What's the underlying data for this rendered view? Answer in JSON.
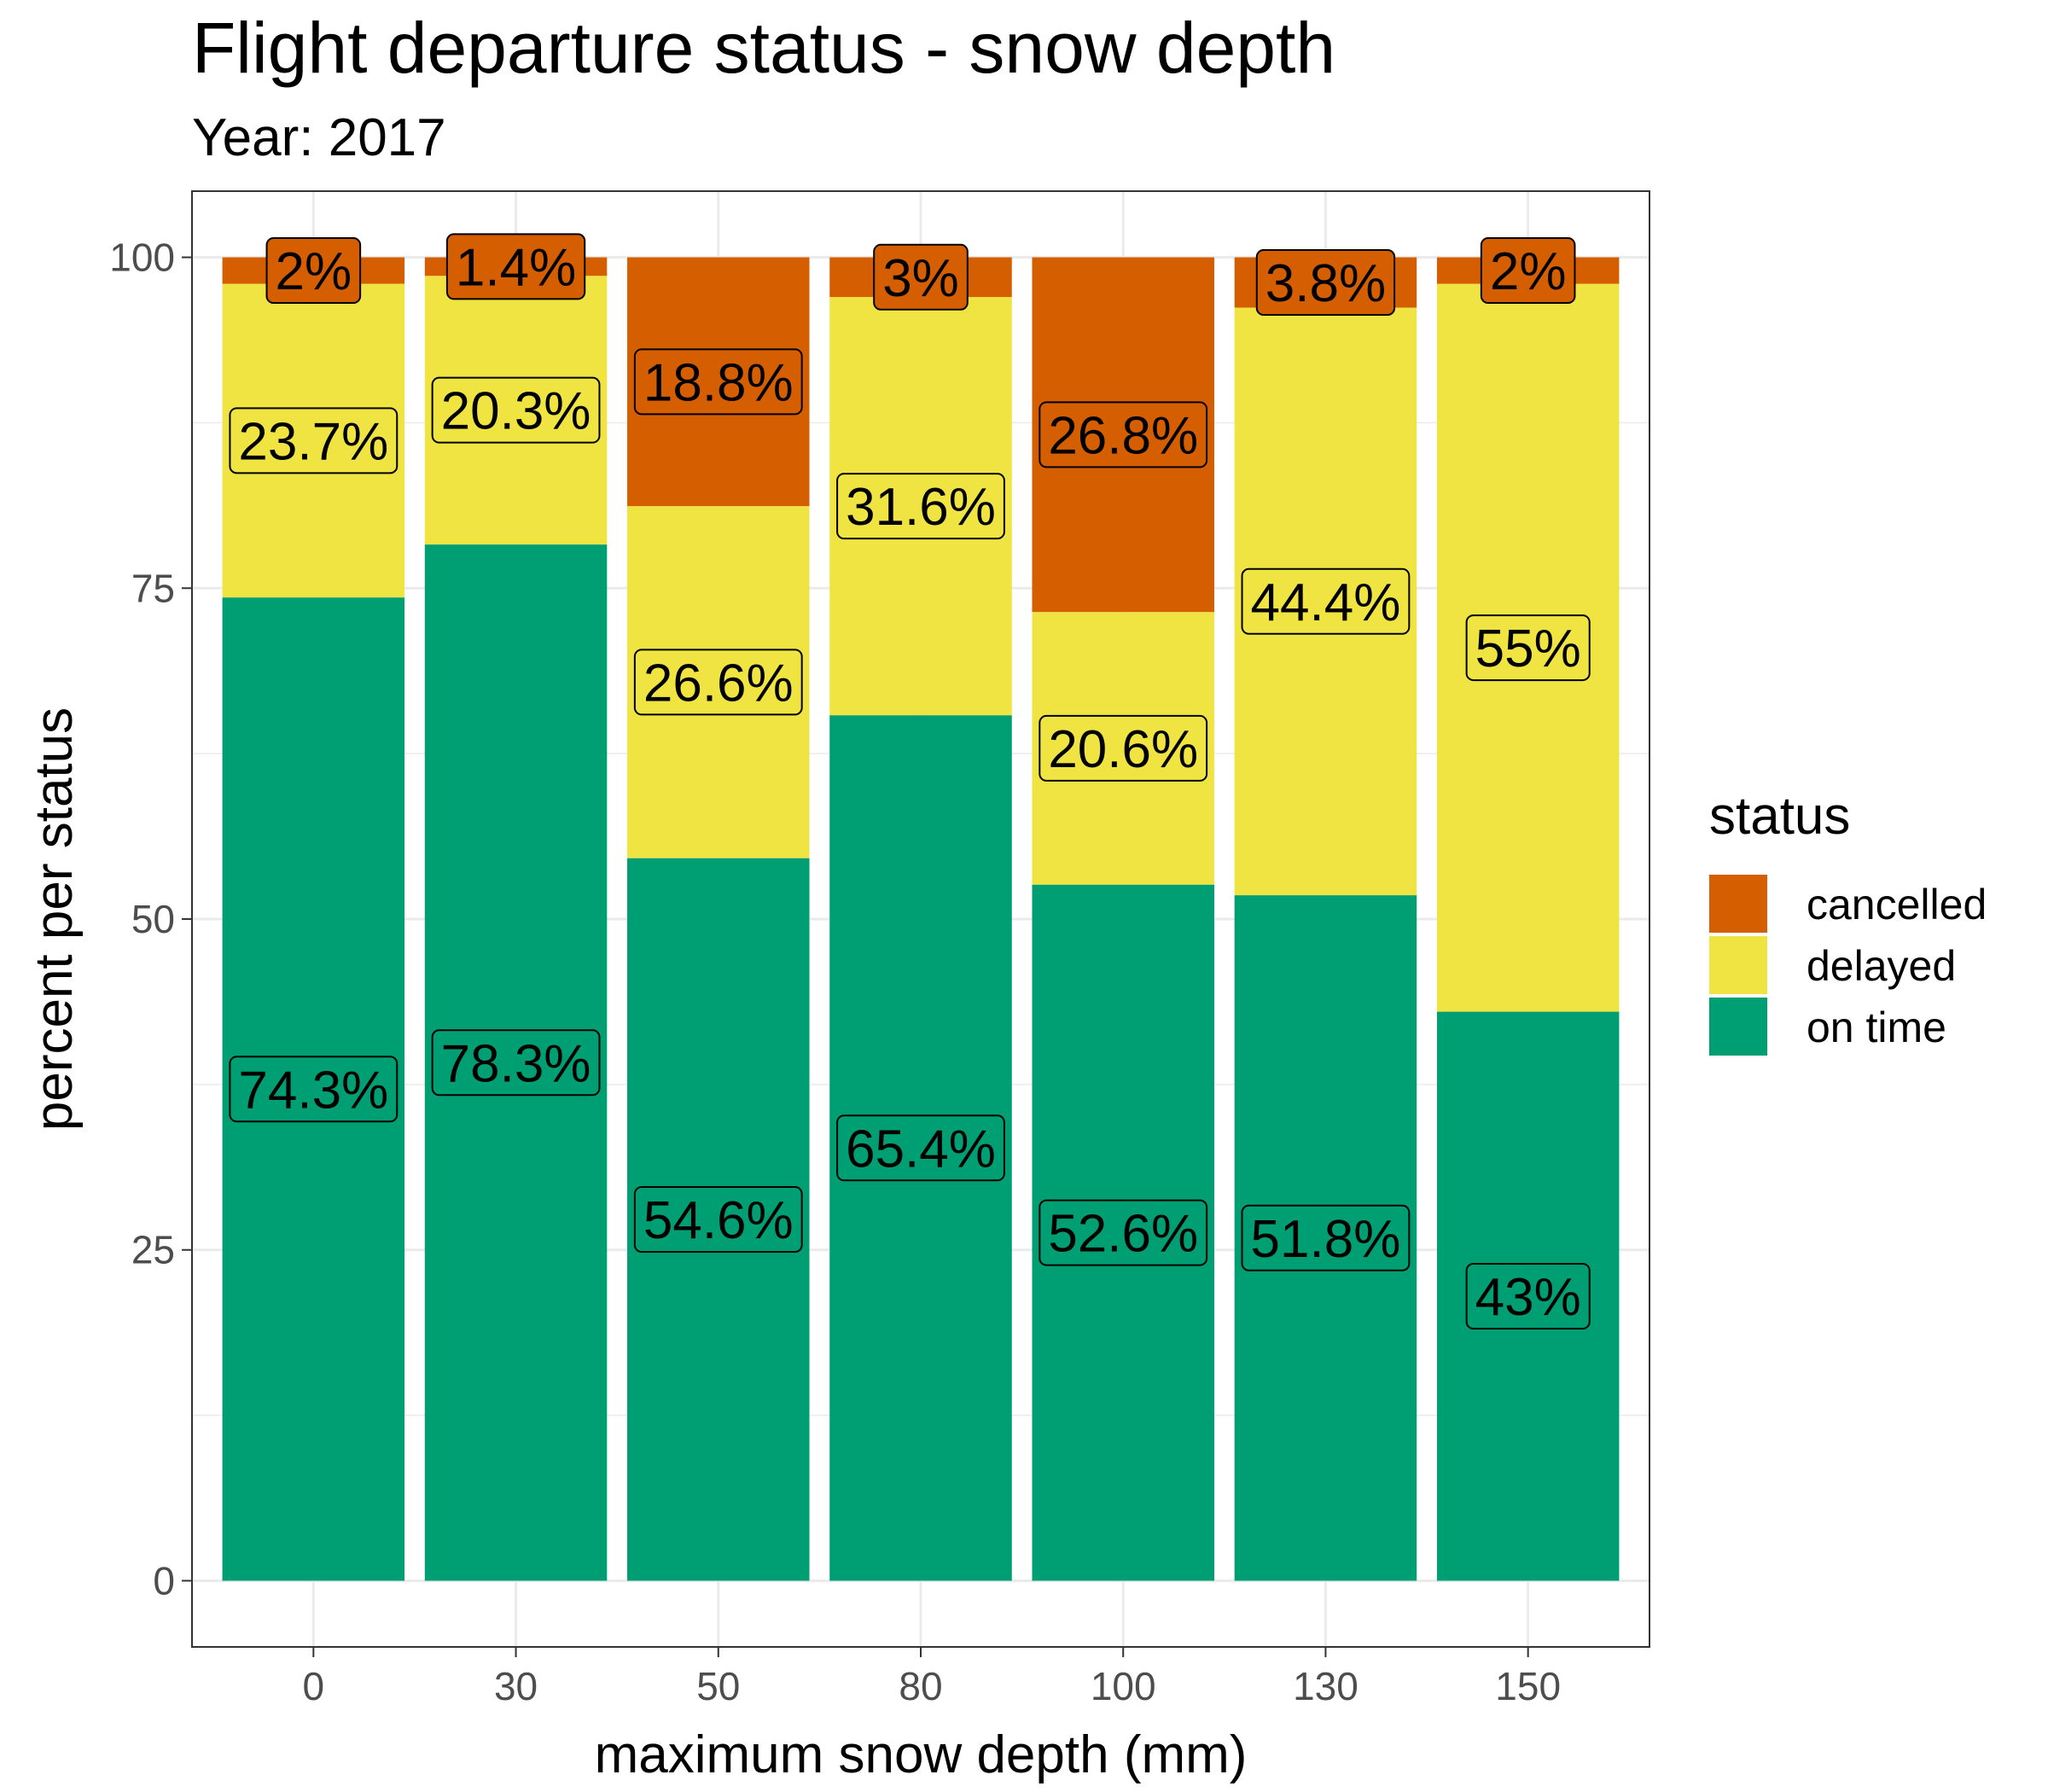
{
  "chart_data": {
    "type": "bar",
    "stacked": true,
    "title": "Flight departure status - snow depth",
    "subtitle": "Year: 2017",
    "xlabel": "maximum snow depth (mm)",
    "ylabel": "percent per status",
    "categories": [
      "0",
      "30",
      "50",
      "80",
      "100",
      "130",
      "150"
    ],
    "ylim": [
      -5,
      105
    ],
    "yticks": [
      "0",
      "25",
      "50",
      "75",
      "100"
    ],
    "grid": true,
    "legend": {
      "title": "status",
      "position": "right",
      "entries": [
        "cancelled",
        "delayed",
        "on time"
      ]
    },
    "colors": {
      "cancelled": "#D55E00",
      "delayed": "#F0E442",
      "on time": "#009E73"
    },
    "series": [
      {
        "name": "on time",
        "values": [
          74.3,
          78.3,
          54.6,
          65.4,
          52.6,
          51.8,
          43
        ],
        "labels": [
          "74.3%",
          "78.3%",
          "54.6%",
          "65.4%",
          "52.6%",
          "51.8%",
          "43%"
        ]
      },
      {
        "name": "delayed",
        "values": [
          23.7,
          20.3,
          26.6,
          31.6,
          20.6,
          44.4,
          55
        ],
        "labels": [
          "23.7%",
          "20.3%",
          "26.6%",
          "31.6%",
          "20.6%",
          "44.4%",
          "55%"
        ]
      },
      {
        "name": "cancelled",
        "values": [
          2,
          1.4,
          18.8,
          3,
          26.8,
          3.8,
          2
        ],
        "labels": [
          "2%",
          "1.4%",
          "18.8%",
          "3%",
          "26.8%",
          "3.8%",
          "2%"
        ]
      }
    ]
  }
}
